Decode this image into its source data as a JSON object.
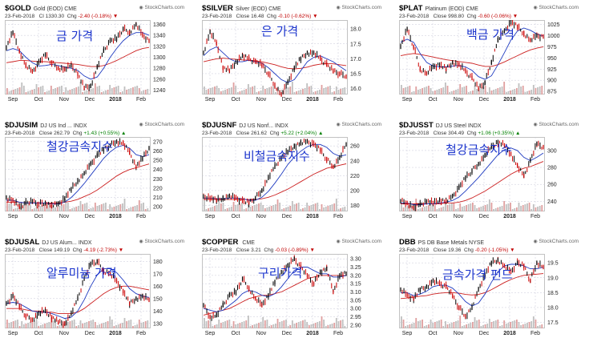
{
  "colors": {
    "up": "#000000",
    "down": "#cc0000",
    "ma_fast": "#1f3bc0",
    "ma_slow": "#cc2020",
    "grid": "#c8c8d8",
    "vol": "#c0c0c0",
    "overlay": "#1a33cc",
    "pos": "#008000",
    "neg": "#c00000"
  },
  "watermark": "StockCharts.com",
  "chart_data": [
    {
      "type": "line",
      "symbol": "$GOLD",
      "name": "Gold (EOD)",
      "exchange": "CME",
      "date": "23-Feb-2018",
      "label_close": "Cl",
      "close": "1330.30",
      "label_chg": "Chg",
      "chg": "-2.40 (-0.18%)",
      "chg_dir": "down",
      "overlay": "금 가격",
      "x_ticks": [
        "Sep",
        "Oct",
        "Nov",
        "Dec",
        "2018",
        "Feb"
      ],
      "y_ticks": [
        1240,
        1260,
        1280,
        1300,
        1320,
        1340,
        1360
      ],
      "ylim": [
        1232,
        1368
      ],
      "points": [
        1318,
        1345,
        1312,
        1285,
        1274,
        1290,
        1305,
        1290,
        1280,
        1278,
        1285,
        1270,
        1244,
        1248,
        1282,
        1312,
        1330,
        1334,
        1352,
        1345,
        1360,
        1340,
        1330
      ],
      "ma_fast": [
        1312,
        1316,
        1312,
        1300,
        1290,
        1284,
        1285,
        1287,
        1285,
        1282,
        1280,
        1276,
        1266,
        1260,
        1264,
        1280,
        1300,
        1316,
        1330,
        1340,
        1345,
        1345,
        1340
      ],
      "ma_slow": [
        1290,
        1292,
        1294,
        1294,
        1293,
        1292,
        1292,
        1291,
        1290,
        1289,
        1288,
        1287,
        1285,
        1283,
        1283,
        1285,
        1289,
        1294,
        1300,
        1306,
        1312,
        1316,
        1318
      ]
    },
    {
      "type": "line",
      "symbol": "$SILVER",
      "name": "Silver (EOD)",
      "exchange": "CME",
      "date": "23-Feb-2018",
      "label_close": "Close",
      "close": "16.48",
      "label_chg": "Chg",
      "chg": "-0.10 (-0.62%)",
      "chg_dir": "down",
      "overlay": "은 가격",
      "x_ticks": [
        "Sep",
        "Oct",
        "Nov",
        "Dec",
        "2018",
        "Feb"
      ],
      "y_ticks": [
        16.0,
        16.5,
        17.0,
        17.5,
        18.0
      ],
      "ylim": [
        15.8,
        18.3
      ],
      "points": [
        17.2,
        17.9,
        17.5,
        16.7,
        16.6,
        16.9,
        17.1,
        17.0,
        16.9,
        16.8,
        16.5,
        16.1,
        15.8,
        16.2,
        16.7,
        17.0,
        17.2,
        17.2,
        17.0,
        16.8,
        16.6,
        16.5,
        16.4
      ],
      "ma_fast": [
        17.1,
        17.3,
        17.4,
        17.2,
        17.0,
        16.9,
        16.9,
        16.95,
        16.9,
        16.85,
        16.7,
        16.5,
        16.3,
        16.2,
        16.3,
        16.6,
        16.9,
        17.05,
        17.1,
        17.0,
        16.9,
        16.75,
        16.6
      ],
      "ma_slow": [
        16.9,
        16.95,
        17.0,
        17.02,
        17.0,
        16.98,
        16.96,
        16.95,
        16.93,
        16.9,
        16.85,
        16.8,
        16.73,
        16.68,
        16.66,
        16.68,
        16.72,
        16.78,
        16.82,
        16.84,
        16.83,
        16.8,
        16.77
      ]
    },
    {
      "type": "line",
      "symbol": "$PLAT",
      "name": "Platinum (EOD)",
      "exchange": "CME",
      "date": "23-Feb-2018",
      "label_close": "Close",
      "close": "998.80",
      "label_chg": "Chg",
      "chg": "-0.60 (-0.06%)",
      "chg_dir": "down",
      "overlay": "백금 가격",
      "x_ticks": [
        "Sep",
        "Oct",
        "Nov",
        "Dec",
        "2018",
        "Feb"
      ],
      "y_ticks": [
        875,
        900,
        925,
        950,
        975,
        1000,
        1025
      ],
      "ylim": [
        868,
        1035
      ],
      "points": [
        975,
        1015,
        975,
        925,
        915,
        930,
        935,
        925,
        940,
        935,
        920,
        905,
        882,
        895,
        940,
        990,
        1010,
        1030,
        1020,
        1005,
        990,
        1000,
        998
      ],
      "ma_fast": [
        985,
        992,
        985,
        960,
        940,
        932,
        930,
        930,
        932,
        933,
        930,
        922,
        908,
        902,
        910,
        935,
        962,
        990,
        1010,
        1017,
        1012,
        1004,
        999
      ],
      "ma_slow": [
        955,
        958,
        960,
        958,
        955,
        952,
        949,
        946,
        944,
        942,
        940,
        938,
        934,
        931,
        931,
        935,
        941,
        948,
        955,
        962,
        968,
        972,
        975
      ]
    },
    {
      "type": "line",
      "symbol": "$DJUSIM",
      "name": "DJ US Ind ...",
      "exchange": "INDX",
      "date": "23-Feb-2018",
      "label_close": "Close",
      "close": "262.79",
      "label_chg": "Chg",
      "chg": "+1.43 (+0.55%)",
      "chg_dir": "up",
      "overlay": "철강금속지수",
      "x_ticks": [
        "Sep",
        "Oct",
        "Nov",
        "Dec",
        "2018",
        "Feb"
      ],
      "y_ticks": [
        200,
        210,
        220,
        230,
        240,
        250,
        260,
        270
      ],
      "ylim": [
        195,
        275
      ],
      "points": [
        210,
        207,
        200,
        204,
        206,
        203,
        204,
        201,
        203,
        209,
        219,
        228,
        236,
        246,
        255,
        262,
        266,
        270,
        268,
        258,
        243,
        252,
        263
      ],
      "ma_fast": [
        207,
        207,
        205,
        204,
        204,
        204,
        204,
        203,
        203,
        205,
        210,
        217,
        225,
        234,
        243,
        252,
        259,
        264,
        266,
        263,
        256,
        254,
        256
      ],
      "ma_slow": [
        205,
        205,
        205,
        204,
        204,
        204,
        204,
        204,
        204,
        205,
        206,
        208,
        211,
        214,
        218,
        223,
        228,
        233,
        237,
        240,
        242,
        244,
        246
      ]
    },
    {
      "type": "line",
      "symbol": "$DJUSNF",
      "name": "DJ US Nonf...",
      "exchange": "INDX",
      "date": "23-Feb-2018",
      "label_close": "Close",
      "close": "261.62",
      "label_chg": "Chg",
      "chg": "+5.22 (+2.04%)",
      "chg_dir": "up",
      "overlay": "비철금속지수",
      "x_ticks": [
        "Sep",
        "Oct",
        "Nov",
        "Dec",
        "2018",
        "Feb"
      ],
      "y_ticks": [
        180,
        200,
        220,
        240,
        260
      ],
      "ylim": [
        172,
        272
      ],
      "points": [
        192,
        190,
        187,
        190,
        193,
        190,
        186,
        184,
        190,
        200,
        217,
        232,
        244,
        252,
        260,
        264,
        266,
        262,
        255,
        242,
        232,
        244,
        262
      ],
      "ma_fast": [
        190,
        190,
        189,
        189,
        190,
        190,
        189,
        187,
        187,
        191,
        199,
        210,
        222,
        235,
        245,
        253,
        259,
        262,
        262,
        258,
        250,
        246,
        248
      ],
      "ma_slow": [
        188,
        188,
        188,
        188,
        188,
        188,
        188,
        188,
        188,
        189,
        191,
        194,
        198,
        202,
        207,
        212,
        217,
        222,
        226,
        230,
        232,
        234,
        236
      ]
    },
    {
      "type": "line",
      "symbol": "$DJUSST",
      "name": "DJ US Steel",
      "exchange": "INDX",
      "date": "23-Feb-2018",
      "label_close": "Close",
      "close": "304.49",
      "label_chg": "Chg",
      "chg": "+1.06 (+0.35%)",
      "chg_dir": "up",
      "overlay": "철강금속지수",
      "x_ticks": [
        "Sep",
        "Oct",
        "Nov",
        "Dec",
        "2018",
        "Feb"
      ],
      "y_ticks": [
        240,
        260,
        280,
        300
      ],
      "ylim": [
        228,
        316
      ],
      "points": [
        240,
        238,
        232,
        236,
        240,
        238,
        242,
        240,
        246,
        256,
        268,
        276,
        284,
        294,
        304,
        310,
        306,
        296,
        282,
        270,
        288,
        308,
        304
      ],
      "ma_fast": [
        238,
        238,
        236,
        236,
        237,
        237,
        238,
        239,
        241,
        245,
        252,
        260,
        268,
        277,
        286,
        295,
        301,
        303,
        300,
        292,
        288,
        292,
        297
      ],
      "ma_slow": [
        237,
        237,
        237,
        237,
        237,
        237,
        237,
        238,
        238,
        239,
        241,
        244,
        248,
        252,
        257,
        262,
        267,
        272,
        276,
        279,
        281,
        284,
        287
      ]
    },
    {
      "type": "line",
      "symbol": "$DJUSAL",
      "name": "DJ US Alum...",
      "exchange": "INDX",
      "date": "23-Feb-2018",
      "label_close": "Close",
      "close": "149.19",
      "label_chg": "Chg",
      "chg": "-4.19 (-2.73%)",
      "chg_dir": "down",
      "overlay": "알루미늄 가격",
      "x_ticks": [
        "Sep",
        "Oct",
        "Nov",
        "Dec",
        "2018",
        "Feb"
      ],
      "y_ticks": [
        130,
        140,
        150,
        160,
        170,
        180
      ],
      "ylim": [
        126,
        186
      ],
      "points": [
        146,
        152,
        144,
        136,
        133,
        138,
        140,
        135,
        131,
        130,
        138,
        150,
        166,
        178,
        180,
        172,
        170,
        164,
        156,
        146,
        150,
        152,
        149
      ],
      "ma_fast": [
        146,
        147,
        146,
        143,
        140,
        139,
        139,
        138,
        136,
        134,
        135,
        140,
        149,
        160,
        169,
        174,
        174,
        171,
        165,
        158,
        154,
        152,
        151
      ],
      "ma_slow": [
        142,
        142,
        142,
        141,
        140,
        140,
        139,
        139,
        138,
        138,
        138,
        139,
        142,
        146,
        150,
        154,
        157,
        159,
        160,
        160,
        159,
        158,
        157
      ]
    },
    {
      "type": "line",
      "symbol": "$COPPER",
      "name": "",
      "exchange": "CME",
      "date": "23-Feb-2018",
      "label_close": "Close",
      "close": "3.21",
      "label_chg": "Chg",
      "chg": "-0.03 (-0.89%)",
      "chg_dir": "down",
      "overlay": "구리가격",
      "x_ticks": [
        "Sep",
        "Oct",
        "Nov",
        "Dec",
        "2018",
        "Feb"
      ],
      "y_ticks": [
        2.9,
        2.95,
        3.0,
        3.05,
        3.1,
        3.15,
        3.2,
        3.25,
        3.3
      ],
      "ylim": [
        2.88,
        3.33
      ],
      "points": [
        3.02,
        2.95,
        2.96,
        3.02,
        3.08,
        3.1,
        3.18,
        3.12,
        3.06,
        3.02,
        3.08,
        3.16,
        3.22,
        3.26,
        3.3,
        3.25,
        3.2,
        3.15,
        3.22,
        3.24,
        3.1,
        3.2,
        3.21
      ],
      "ma_fast": [
        3.0,
        2.99,
        2.98,
        2.99,
        3.02,
        3.05,
        3.09,
        3.11,
        3.1,
        3.08,
        3.07,
        3.09,
        3.13,
        3.18,
        3.23,
        3.25,
        3.25,
        3.23,
        3.21,
        3.21,
        3.19,
        3.19,
        3.2
      ],
      "ma_slow": [
        2.96,
        2.97,
        2.98,
        2.99,
        3.0,
        3.02,
        3.04,
        3.06,
        3.07,
        3.08,
        3.08,
        3.09,
        3.1,
        3.12,
        3.14,
        3.16,
        3.18,
        3.19,
        3.2,
        3.2,
        3.2,
        3.2,
        3.2
      ]
    },
    {
      "type": "line",
      "symbol": "DBB",
      "name": "PS DB Base Metals",
      "exchange": "NYSE",
      "date": "23-Feb-2018",
      "label_close": "Close",
      "close": "19.36",
      "label_chg": "Chg",
      "chg": "-0.20 (-1.05%)",
      "chg_dir": "down",
      "overlay": "금속가격 펀드",
      "x_ticks": [
        "Sep",
        "Oct",
        "Nov",
        "Dec",
        "2018",
        "Feb"
      ],
      "y_ticks": [
        17.5,
        18.0,
        18.5,
        19.0,
        19.5
      ],
      "ylim": [
        17.3,
        19.8
      ],
      "points": [
        18.6,
        18.4,
        18.3,
        18.6,
        18.7,
        18.9,
        18.8,
        18.7,
        18.4,
        18.0,
        17.7,
        18.0,
        18.6,
        19.1,
        19.5,
        19.6,
        19.4,
        19.2,
        19.5,
        19.4,
        18.9,
        19.5,
        19.36
      ],
      "ma_fast": [
        18.5,
        18.5,
        18.4,
        18.45,
        18.55,
        18.7,
        18.75,
        18.75,
        18.65,
        18.45,
        18.2,
        18.05,
        18.15,
        18.45,
        18.85,
        19.2,
        19.4,
        19.45,
        19.45,
        19.4,
        19.3,
        19.3,
        19.35
      ],
      "ma_slow": [
        18.3,
        18.32,
        18.35,
        18.38,
        18.4,
        18.45,
        18.48,
        18.5,
        18.5,
        18.48,
        18.44,
        18.42,
        18.44,
        18.5,
        18.6,
        18.72,
        18.84,
        18.94,
        19.02,
        19.08,
        19.1,
        19.12,
        19.14
      ]
    }
  ]
}
